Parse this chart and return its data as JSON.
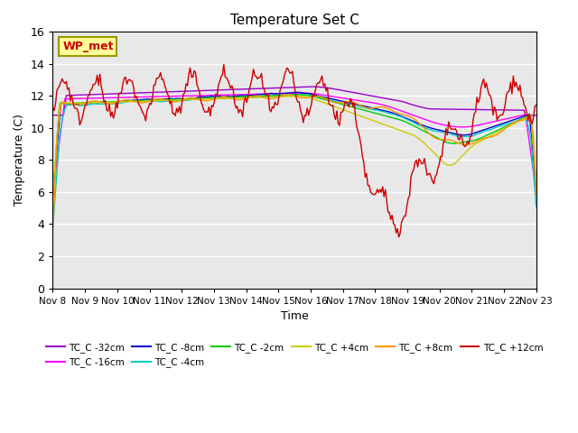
{
  "title": "Temperature Set C",
  "xlabel": "Time",
  "ylabel": "Temperature (C)",
  "ylim": [
    0,
    16
  ],
  "yticks": [
    0,
    2,
    4,
    6,
    8,
    10,
    12,
    14,
    16
  ],
  "background_color": "#e8e8e8",
  "annotation_text": "WP_met",
  "series_names": [
    "TC_C -32cm",
    "TC_C -16cm",
    "TC_C -8cm",
    "TC_C -4cm",
    "TC_C -2cm",
    "TC_C +4cm",
    "TC_C +8cm",
    "TC_C +12cm"
  ],
  "series_colors": [
    "#9900cc",
    "#ff00ff",
    "#0000cc",
    "#00cccc",
    "#00cc00",
    "#cccc00",
    "#ff9900",
    "#cc0000"
  ],
  "xtick_labels": [
    "Nov 8",
    "Nov 9",
    "Nov 10",
    "Nov 11",
    "Nov 12",
    "Nov 13",
    "Nov 14",
    "Nov 15",
    "Nov 16",
    "Nov 17",
    "Nov 18",
    "Nov 19",
    "Nov 20",
    "Nov 21",
    "Nov 22",
    "Nov 23"
  ],
  "n_points": 360,
  "n_days": 15
}
